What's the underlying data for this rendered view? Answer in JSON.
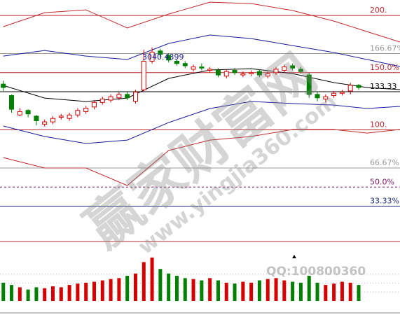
{
  "chart_data": {
    "type": "candlestick",
    "annotation": "3040.4399",
    "watermark": "赢家财富网",
    "watermark_url": "www.yingjia360.com",
    "watermark_qq": "QQ:100800360",
    "ylim": [
      5.5,
      213.5
    ],
    "xlim": [
      -0.4,
      48
    ],
    "yticks": [
      {
        "value": 200,
        "label": "200."
      },
      {
        "value": 166.67,
        "label": "166.67%"
      },
      {
        "value": 150,
        "label": "150.0%"
      },
      {
        "value": 133.33,
        "label": "133.33"
      },
      {
        "value": 100,
        "label": "100."
      },
      {
        "value": 66.67,
        "label": "66.67%"
      },
      {
        "value": 50,
        "label": "50.0%"
      },
      {
        "value": 33.33,
        "label": "33.33%"
      }
    ],
    "ytick_colors": [
      "#c0282d",
      "#999999",
      "#c0282d",
      "#000000",
      "#c0282d",
      "#999999",
      "#7a1a6a",
      "#1a2a7a"
    ],
    "ytick_dashed": [
      false,
      false,
      false,
      false,
      false,
      false,
      true,
      false
    ],
    "up_color": "#d40000",
    "down_color": "#008000",
    "open": [
      140,
      130,
      113,
      117,
      112,
      105,
      107,
      111,
      110,
      113,
      116,
      120,
      124,
      126,
      128,
      131,
      125,
      135,
      160,
      169,
      165,
      160,
      158,
      153,
      155,
      152,
      152,
      147,
      152,
      148,
      149,
      151,
      147,
      150,
      152,
      156,
      153,
      148,
      131,
      127,
      130,
      132,
      134,
      139
    ],
    "close": [
      137,
      118,
      116,
      114,
      108,
      107,
      110,
      112,
      113,
      117,
      119,
      124,
      127,
      129,
      131,
      128,
      133,
      160,
      168,
      166,
      161,
      158,
      156,
      155,
      154,
      153,
      148,
      151,
      150,
      149,
      150,
      148,
      149,
      153,
      155,
      154,
      151,
      131,
      128,
      129,
      132,
      133,
      139,
      137
    ],
    "high": [
      143,
      131,
      119,
      118,
      113,
      109,
      112,
      114,
      115,
      119,
      121,
      126,
      129,
      131,
      133,
      133,
      135,
      170,
      172,
      171,
      167,
      162,
      160,
      157,
      158,
      155,
      154,
      153,
      154,
      151,
      152,
      153,
      151,
      155,
      157,
      158,
      155,
      150,
      133,
      131,
      134,
      135,
      141,
      140
    ],
    "low": [
      134,
      115,
      112,
      111,
      104,
      103,
      105,
      109,
      108,
      111,
      114,
      118,
      122,
      124,
      126,
      126,
      123,
      133,
      158,
      163,
      159,
      156,
      154,
      151,
      152,
      150,
      146,
      145,
      148,
      146,
      147,
      146,
      145,
      148,
      150,
      152,
      149,
      128,
      125,
      124,
      128,
      130,
      131,
      135
    ],
    "volume": [
      40,
      35,
      30,
      25,
      30,
      28,
      32,
      30,
      35,
      38,
      40,
      42,
      45,
      48,
      50,
      55,
      60,
      85,
      95,
      70,
      60,
      55,
      50,
      48,
      45,
      50,
      45,
      40,
      38,
      42,
      40,
      45,
      48,
      50,
      45,
      42,
      40,
      55,
      40,
      35,
      38,
      42,
      40,
      35
    ],
    "vlim": [
      0,
      130
    ],
    "lines": {
      "x": [
        0,
        5,
        10,
        15,
        20,
        25,
        30,
        35,
        40,
        44,
        48
      ],
      "series": [
        {
          "color": "#c0282d",
          "values": [
            190.2,
            202.4,
            204.9,
            189.0,
            201.2,
            211.6,
            210.4,
            204.3,
            195.1,
            185.9,
            176.8
          ]
        },
        {
          "color": "#1a1a9a",
          "values": [
            164.5,
            169.4,
            164.5,
            161.5,
            175.5,
            182.9,
            179.8,
            173.7,
            167.6,
            161.5,
            155.4
          ]
        },
        {
          "color": "#000000",
          "values": [
            138.8,
            127.8,
            124.8,
            127.8,
            145.0,
            152.3,
            153.5,
            149.2,
            141.3,
            137.0,
            135.2
          ]
        },
        {
          "color": "#1a1a9a",
          "values": [
            103.4,
            94.2,
            88.1,
            91.1,
            106.4,
            118.7,
            124.8,
            123.0,
            121.7,
            118.7,
            120.5
          ]
        },
        {
          "color": "#c0282d",
          "values": [
            75.8,
            66.7,
            66.7,
            51.4,
            82.0,
            91.1,
            94.2,
            100.3,
            100.3,
            97.2,
            100.3
          ]
        }
      ]
    }
  }
}
